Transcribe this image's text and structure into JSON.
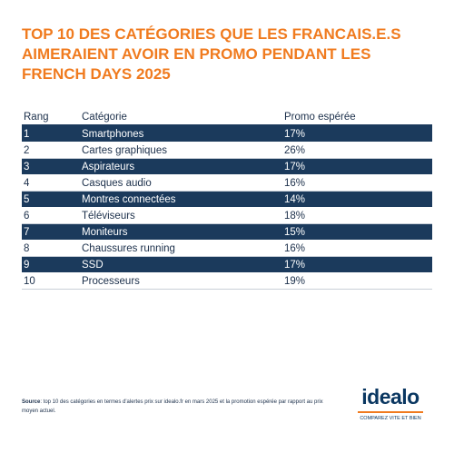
{
  "header": {
    "title": "TOP 10 DES CATÉGORIES QUE LES FRANCAIS.E.S AIMERAIENT AVOIR EN PROMO PENDANT LES FRENCH DAYS 2025"
  },
  "table": {
    "headers": [
      "Rang",
      "Catégorie",
      "Promo espérée"
    ],
    "rows": [
      [
        "1",
        "Smartphones",
        "17%"
      ],
      [
        "2",
        "Cartes graphiques",
        "26%"
      ],
      [
        "3",
        "Aspirateurs",
        "17%"
      ],
      [
        "4",
        "Casques audio",
        "16%"
      ],
      [
        "5",
        "Montres connectées",
        "14%"
      ],
      [
        "6",
        "Téléviseurs",
        "18%"
      ],
      [
        "7",
        "Moniteurs",
        "15%"
      ],
      [
        "8",
        "Chaussures running",
        "16%"
      ],
      [
        "9",
        "SSD",
        "17%"
      ],
      [
        "10",
        "Processeurs",
        "19%"
      ]
    ]
  },
  "footer": {
    "source_label": "Source",
    "source_text": ": top 10 des catégories en termes d'alertes prix sur idealo.fr en mars 2025 et la promotion espérée par rapport au prix moyen actuel.",
    "logo": "idealo",
    "tagline": "COMPAREZ VITE ET BIEN"
  }
}
